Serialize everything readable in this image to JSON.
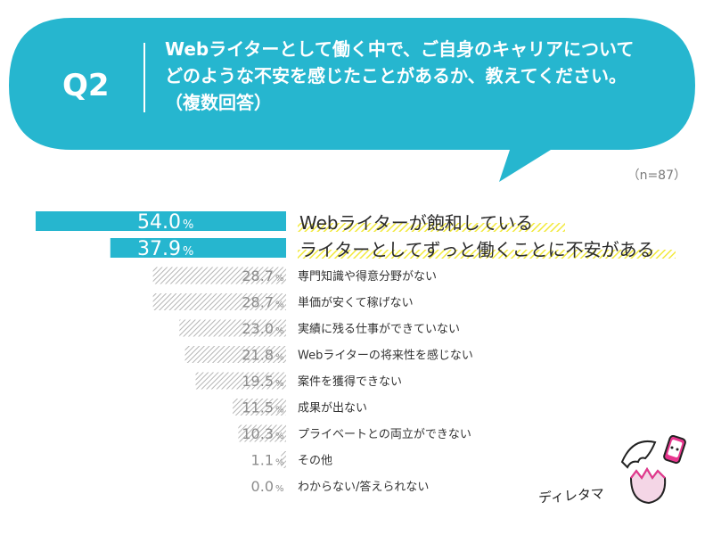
{
  "question": {
    "label": "Q2",
    "text": "Webライターとして働く中で、ご自身のキャリアについて\nどのような不安を感じたことがあるか、教えてください。\n（複数回答）"
  },
  "sample_size": "（n=87）",
  "brand": "ディレタマ",
  "colors": {
    "accent": "#26b6cf",
    "highlight_yellow": "#f2e93c",
    "hatch_gray": "#b5b5b5",
    "value_gray": "#8c8c8c"
  },
  "chart_data": {
    "type": "bar",
    "orientation": "horizontal",
    "unit": "%",
    "xlim": [
      0,
      100
    ],
    "categories": [
      "Webライターが飽和している",
      "ライターとしてずっと働くことに不安がある",
      "専門知識や得意分野がない",
      "単価が安くて稼げない",
      "実績に残る仕事ができていない",
      "Webライターの将来性を感じない",
      "案件を獲得できない",
      "成果が出ない",
      "プライベートとの両立ができない",
      "その他",
      "わからない/答えられない"
    ],
    "values": [
      54.0,
      37.9,
      28.7,
      28.7,
      23.0,
      21.8,
      19.5,
      11.5,
      10.3,
      1.1,
      0.0
    ],
    "value_labels": [
      "54.0",
      "37.9",
      "28.7",
      "28.7",
      "23.0",
      "21.8",
      "19.5",
      "11.5",
      "10.3",
      "1.1",
      "0.0"
    ],
    "highlighted": [
      true,
      true,
      false,
      false,
      false,
      false,
      false,
      false,
      false,
      false,
      false
    ]
  }
}
